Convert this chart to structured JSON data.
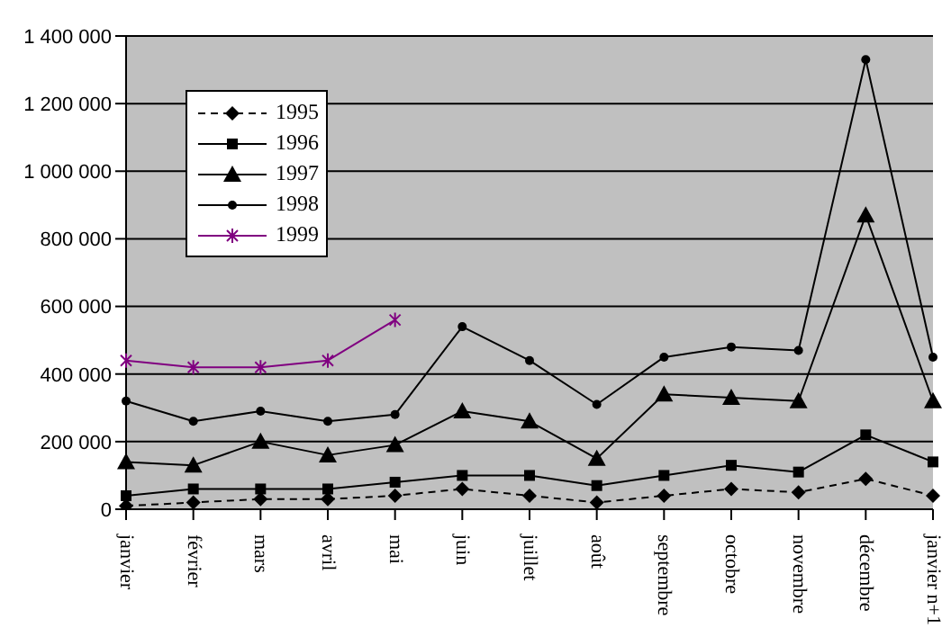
{
  "chart_data": {
    "type": "line",
    "categories": [
      "janvier",
      "février",
      "mars",
      "avril",
      "mai",
      "juin",
      "juillet",
      "août",
      "septembre",
      "octobre",
      "novembre",
      "décembre",
      "janvier n+1"
    ],
    "series": [
      {
        "name": "1995",
        "color": "#000000",
        "marker": "diamond",
        "line_style": "dashed",
        "values": [
          10000,
          20000,
          30000,
          30000,
          40000,
          60000,
          40000,
          20000,
          40000,
          60000,
          50000,
          90000,
          40000
        ]
      },
      {
        "name": "1996",
        "color": "#000000",
        "marker": "square",
        "line_style": "solid",
        "values": [
          40000,
          60000,
          60000,
          60000,
          80000,
          100000,
          100000,
          70000,
          100000,
          130000,
          110000,
          220000,
          140000
        ]
      },
      {
        "name": "1997",
        "color": "#000000",
        "marker": "triangle",
        "line_style": "solid",
        "values": [
          140000,
          130000,
          200000,
          160000,
          190000,
          290000,
          260000,
          150000,
          340000,
          330000,
          320000,
          870000,
          320000
        ]
      },
      {
        "name": "1998",
        "color": "#000000",
        "marker": "circle",
        "line_style": "solid",
        "values": [
          320000,
          260000,
          290000,
          260000,
          280000,
          540000,
          440000,
          310000,
          450000,
          480000,
          470000,
          1330000,
          450000
        ]
      },
      {
        "name": "1999",
        "color": "#800080",
        "marker": "cross",
        "line_style": "solid",
        "values": [
          440000,
          420000,
          420000,
          440000,
          560000,
          null,
          null,
          null,
          null,
          null,
          null,
          null,
          null
        ]
      }
    ],
    "ylim": [
      0,
      1400000
    ],
    "yticks": [
      0,
      {
        "value": 200000,
        "label": "200 000"
      },
      {
        "value": 400000,
        "label": "400 000"
      },
      {
        "value": 600000,
        "label": "600 000"
      },
      {
        "value": 800000,
        "label": "800 000"
      },
      {
        "value": 1000000,
        "label": "1 000 000"
      },
      {
        "value": 1200000,
        "label": "1 200 000"
      },
      {
        "value": 1400000,
        "label": "1 400 000"
      }
    ],
    "grid": "y",
    "legend": "top left"
  }
}
